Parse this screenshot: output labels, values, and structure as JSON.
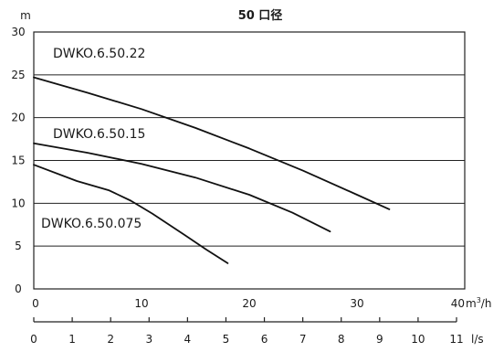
{
  "chart_data": {
    "type": "line",
    "title": "50 口径",
    "y_axis": {
      "label": "m",
      "range": [
        0,
        30
      ],
      "ticks": [
        0,
        5,
        10,
        15,
        20,
        25,
        30
      ],
      "grid": true
    },
    "x_axis_flow_m3h": {
      "unit": "m³/h",
      "unit_base": "m",
      "unit_sup": "3",
      "unit_tail": "/h",
      "range": [
        0,
        40
      ],
      "ticks": [
        0,
        10,
        20,
        30,
        40
      ],
      "tick_labels": [
        "0",
        "10",
        "20",
        "30",
        "40"
      ]
    },
    "x_axis_flow_ls": {
      "unit": "l/s",
      "range": [
        0,
        11
      ],
      "ticks": [
        0,
        1,
        2,
        3,
        4,
        5,
        6,
        7,
        8,
        9,
        10,
        11
      ],
      "tick_labels": [
        "0",
        "1",
        "2",
        "3",
        "4",
        "5",
        "6",
        "7",
        "8",
        "9",
        "10",
        "11"
      ]
    },
    "series": [
      {
        "name": "DWKO.6.50.22",
        "x": [
          0,
          5,
          10,
          15,
          20,
          25,
          30,
          33
        ],
        "y": [
          24.7,
          22.9,
          21.0,
          18.8,
          16.4,
          13.8,
          11.0,
          9.3
        ]
      },
      {
        "name": "DWKO.6.50.15",
        "x": [
          0,
          5,
          10,
          15,
          20,
          24,
          27.5
        ],
        "y": [
          17.0,
          15.9,
          14.6,
          13.0,
          11.0,
          8.9,
          6.7
        ]
      },
      {
        "name": "DWKO.6.50.075",
        "x": [
          0,
          4,
          7,
          9,
          11,
          14,
          16,
          18
        ],
        "y": [
          14.5,
          12.6,
          11.5,
          10.3,
          8.8,
          6.3,
          4.6,
          3.0
        ]
      }
    ]
  }
}
